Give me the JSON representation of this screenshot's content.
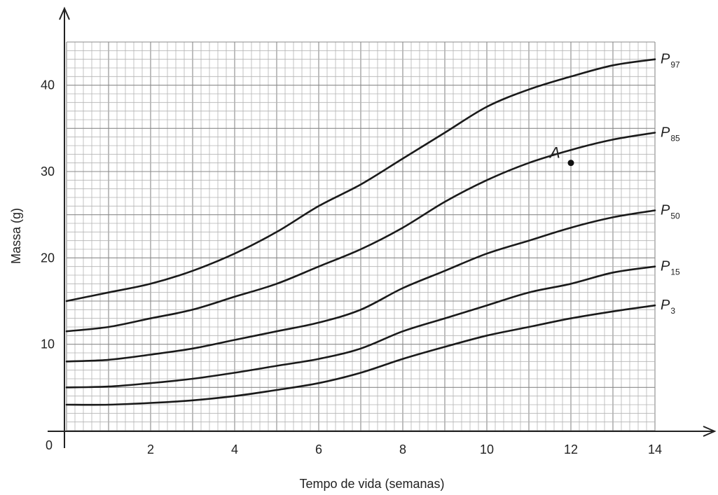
{
  "chart_data": {
    "type": "line",
    "title": "",
    "xlabel": "Tempo de vida (semanas)",
    "ylabel": "Massa (g)",
    "xlim": [
      0,
      14
    ],
    "ylim": [
      0,
      45
    ],
    "grid": true,
    "origin_label": "0",
    "x_ticks": [
      "2",
      "4",
      "6",
      "8",
      "10",
      "12",
      "14"
    ],
    "y_ticks": [
      "10",
      "20",
      "30",
      "40"
    ],
    "x": [
      0,
      1,
      2,
      3,
      4,
      5,
      6,
      7,
      8,
      9,
      10,
      11,
      12,
      13,
      14
    ],
    "series": [
      {
        "name": "P",
        "subscript": "97",
        "values": [
          15,
          16,
          17,
          18.5,
          20.5,
          23,
          26,
          28.5,
          31.5,
          34.5,
          37.5,
          39.5,
          41,
          42.3,
          43
        ]
      },
      {
        "name": "P",
        "subscript": "85",
        "values": [
          11.5,
          12,
          13,
          14,
          15.5,
          17,
          19,
          21,
          23.5,
          26.5,
          29,
          31,
          32.5,
          33.7,
          34.5
        ]
      },
      {
        "name": "P",
        "subscript": "50",
        "values": [
          8,
          8.2,
          8.8,
          9.5,
          10.5,
          11.5,
          12.5,
          14,
          16.5,
          18.5,
          20.5,
          22,
          23.5,
          24.7,
          25.5
        ]
      },
      {
        "name": "P",
        "subscript": "15",
        "values": [
          5,
          5.1,
          5.5,
          6,
          6.7,
          7.5,
          8.3,
          9.5,
          11.5,
          13,
          14.5,
          16,
          17,
          18.3,
          19
        ]
      },
      {
        "name": "P",
        "subscript": "3",
        "values": [
          3,
          3,
          3.2,
          3.5,
          4,
          4.7,
          5.5,
          6.7,
          8.3,
          9.7,
          11,
          12,
          13,
          13.8,
          14.5
        ]
      }
    ],
    "annotations": [
      {
        "label": "A",
        "x": 12,
        "y": 31
      }
    ]
  }
}
